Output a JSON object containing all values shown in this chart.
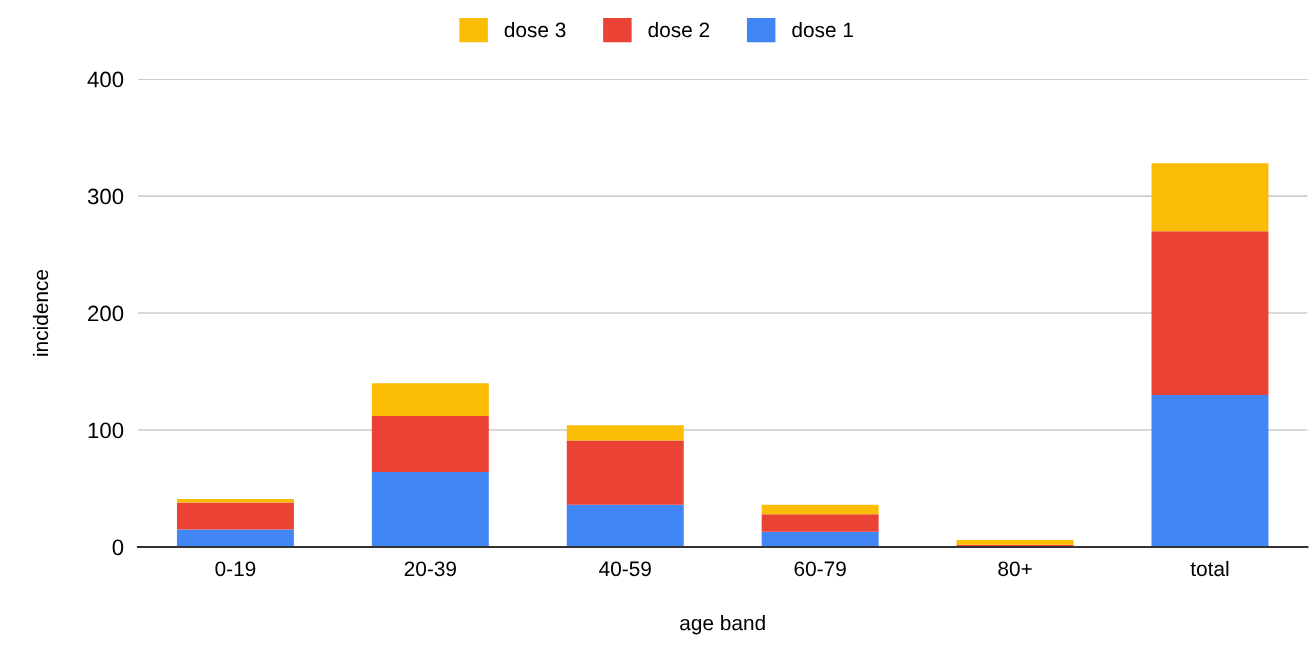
{
  "chart_data": {
    "type": "bar",
    "stacked": true,
    "xlabel": "age band",
    "ylabel": "incidence",
    "categories": [
      "0-19",
      "20-39",
      "40-59",
      "60-79",
      "80+",
      "total"
    ],
    "series": [
      {
        "name": "dose 1",
        "color": "#4285f4",
        "values": [
          15,
          64,
          36,
          13,
          0,
          130
        ]
      },
      {
        "name": "dose 2",
        "color": "#ea4335",
        "values": [
          23,
          48,
          55,
          15,
          2,
          140
        ]
      },
      {
        "name": "dose 3",
        "color": "#fbbc04",
        "values": [
          3,
          28,
          13,
          8,
          4,
          58
        ]
      }
    ],
    "ylim": [
      0,
      400
    ],
    "yticks": [
      0,
      100,
      200,
      300,
      400
    ],
    "grid": "y",
    "legend": "top"
  }
}
